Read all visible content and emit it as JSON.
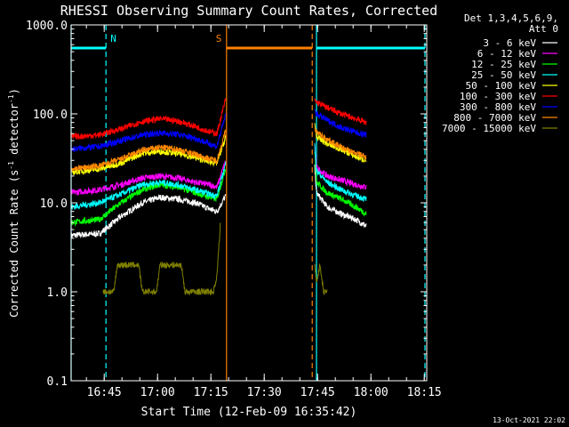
{
  "chart_data": {
    "type": "line",
    "title": "RHESSI Observing Summary Count Rates, Corrected",
    "xlabel": "Start Time (12-Feb-09 16:35:42)",
    "ylabel": "Corrected Count Rate (s",
    "ylabel_sup1": "-1",
    "ylabel_mid": " detector",
    "ylabel_sup2": "-1",
    "ylabel_end": ")",
    "y_scale": "log",
    "ylim": [
      0.1,
      1000
    ],
    "xlim_minutes": [
      0,
      100
    ],
    "y_ticks": [
      "0.1",
      "1.0",
      "10.0",
      "100.0",
      "1000.0"
    ],
    "x_ticks": [
      {
        "t": 9.3,
        "label": "16:45"
      },
      {
        "t": 24.3,
        "label": "17:00"
      },
      {
        "t": 39.3,
        "label": "17:15"
      },
      {
        "t": 54.3,
        "label": "17:30"
      },
      {
        "t": 69.3,
        "label": "17:45"
      },
      {
        "t": 84.3,
        "label": "18:00"
      },
      {
        "t": 99.3,
        "label": "18:15"
      }
    ],
    "legend_header": [
      "Det 1,3,4,5,6,9,",
      "Att 0"
    ],
    "legend_placement": "right",
    "series": [
      {
        "name": "3 - 6 keV",
        "color": "#ffffff",
        "seg1": [
          [
            0,
            4.3
          ],
          [
            8,
            4.5
          ],
          [
            14,
            7
          ],
          [
            20,
            10
          ],
          [
            25,
            11.5
          ],
          [
            30,
            11
          ],
          [
            35,
            10
          ],
          [
            39,
            8.5
          ],
          [
            41,
            8
          ],
          [
            43.5,
            12
          ]
        ],
        "seg2": [
          [
            68.5,
            25
          ],
          [
            69,
            13
          ],
          [
            72,
            9
          ],
          [
            76,
            7.5
          ],
          [
            80,
            6.5
          ],
          [
            83,
            5.5
          ]
        ]
      },
      {
        "name": "6 - 12 keV",
        "color": "#ff00ff",
        "seg1": [
          [
            0,
            13
          ],
          [
            8,
            14
          ],
          [
            14,
            16
          ],
          [
            20,
            19
          ],
          [
            25,
            20
          ],
          [
            30,
            19
          ],
          [
            35,
            17
          ],
          [
            39,
            16
          ],
          [
            41,
            15
          ],
          [
            43.5,
            30
          ]
        ],
        "seg2": [
          [
            68.5,
            45
          ],
          [
            69,
            25
          ],
          [
            72,
            20
          ],
          [
            76,
            18
          ],
          [
            80,
            16
          ],
          [
            83,
            15
          ]
        ]
      },
      {
        "name": "12 - 25 keV",
        "color": "#00ff00",
        "seg1": [
          [
            0,
            6
          ],
          [
            8,
            6.5
          ],
          [
            14,
            10
          ],
          [
            20,
            14
          ],
          [
            25,
            16
          ],
          [
            30,
            15
          ],
          [
            35,
            13
          ],
          [
            39,
            11.5
          ],
          [
            41,
            11
          ],
          [
            43.5,
            25
          ]
        ],
        "seg2": [
          [
            68.5,
            40
          ],
          [
            69,
            17
          ],
          [
            72,
            13
          ],
          [
            76,
            11
          ],
          [
            80,
            9
          ],
          [
            83,
            7.5
          ]
        ]
      },
      {
        "name": "25 - 50 keV",
        "color": "#00ffff",
        "seg1": [
          [
            0,
            9
          ],
          [
            8,
            10
          ],
          [
            14,
            12.5
          ],
          [
            20,
            16
          ],
          [
            25,
            17
          ],
          [
            30,
            16
          ],
          [
            35,
            14
          ],
          [
            39,
            12.5
          ],
          [
            41,
            12
          ],
          [
            43.5,
            28
          ]
        ],
        "seg2": [
          [
            68.5,
            45
          ],
          [
            69,
            23
          ],
          [
            72,
            17
          ],
          [
            76,
            14
          ],
          [
            80,
            12
          ],
          [
            83,
            11
          ]
        ]
      },
      {
        "name": "50 - 100 keV",
        "color": "#ffff00",
        "seg1": [
          [
            0,
            22
          ],
          [
            8,
            24
          ],
          [
            14,
            28
          ],
          [
            20,
            36
          ],
          [
            25,
            38
          ],
          [
            30,
            36
          ],
          [
            35,
            32
          ],
          [
            39,
            29
          ],
          [
            41,
            28
          ],
          [
            43.5,
            55
          ]
        ],
        "seg2": [
          [
            68.5,
            75
          ],
          [
            69,
            55
          ],
          [
            72,
            46
          ],
          [
            76,
            40
          ],
          [
            80,
            33
          ],
          [
            83,
            30
          ]
        ]
      },
      {
        "name": "100 - 300 keV",
        "color": "#ff0000",
        "seg1": [
          [
            0,
            55
          ],
          [
            8,
            58
          ],
          [
            14,
            68
          ],
          [
            20,
            82
          ],
          [
            25,
            88
          ],
          [
            30,
            83
          ],
          [
            35,
            72
          ],
          [
            39,
            63
          ],
          [
            41,
            60
          ],
          [
            43.5,
            150
          ]
        ],
        "seg2": [
          [
            68.5,
            140
          ],
          [
            69,
            135
          ],
          [
            72,
            118
          ],
          [
            76,
            100
          ],
          [
            80,
            88
          ],
          [
            83,
            80
          ]
        ]
      },
      {
        "name": "300 - 800 keV",
        "color": "#0000ff",
        "seg1": [
          [
            0,
            40
          ],
          [
            8,
            43
          ],
          [
            14,
            50
          ],
          [
            20,
            58
          ],
          [
            25,
            61
          ],
          [
            30,
            59
          ],
          [
            35,
            53
          ],
          [
            39,
            46
          ],
          [
            41,
            43
          ],
          [
            43.5,
            100
          ]
        ],
        "seg2": [
          [
            68.5,
            110
          ],
          [
            69,
            100
          ],
          [
            72,
            85
          ],
          [
            76,
            70
          ],
          [
            80,
            62
          ],
          [
            83,
            58
          ]
        ]
      },
      {
        "name": "800 - 7000 keV",
        "color": "#ff8800",
        "seg1": [
          [
            0,
            24
          ],
          [
            8,
            26
          ],
          [
            14,
            31
          ],
          [
            20,
            39
          ],
          [
            25,
            42
          ],
          [
            30,
            40
          ],
          [
            35,
            35
          ],
          [
            39,
            31
          ],
          [
            41,
            30
          ],
          [
            43.5,
            65
          ]
        ],
        "seg2": [
          [
            68.5,
            70
          ],
          [
            69,
            62
          ],
          [
            72,
            52
          ],
          [
            76,
            42
          ],
          [
            80,
            36
          ],
          [
            83,
            33
          ]
        ]
      },
      {
        "name": "7000 - 15000 keV",
        "color": "#808000",
        "seg1": [
          [
            9,
            1.0
          ],
          [
            12,
            1.0
          ],
          [
            13,
            2.0
          ],
          [
            19,
            2.0
          ],
          [
            20,
            1.0
          ],
          [
            24,
            1.0
          ],
          [
            25,
            2.0
          ],
          [
            31,
            2.0
          ],
          [
            32,
            1.0
          ],
          [
            39,
            1.0
          ],
          [
            40,
            1.0
          ],
          [
            41,
            1.5
          ],
          [
            41.5,
            3
          ],
          [
            42,
            6
          ]
        ],
        "seg2": [
          [
            68.5,
            2
          ],
          [
            69,
            1.3
          ],
          [
            70,
            2
          ],
          [
            71,
            1.0
          ],
          [
            72,
            1.0
          ]
        ]
      }
    ],
    "flag_bars": [
      {
        "label": "N",
        "color": "#00ffff",
        "t_start": 0,
        "t_end": 9.8
      },
      {
        "label": "S",
        "color": "#ff8000",
        "t_start": 43.7,
        "t_end": 67.8
      },
      {
        "label": "",
        "color": "#00ffff",
        "t_start": 69.0,
        "t_end": 99.5
      }
    ],
    "vlines": [
      {
        "t": 0,
        "color": "#00ffff",
        "style": "solid"
      },
      {
        "t": 9.8,
        "color": "#00ffff",
        "style": "dashed"
      },
      {
        "t": 43.7,
        "color": "#ff8000",
        "style": "solid"
      },
      {
        "t": 67.8,
        "color": "#ff8000",
        "style": "dashed"
      },
      {
        "t": 69.0,
        "color": "#00ffff",
        "style": "solid"
      },
      {
        "t": 99.5,
        "color": "#00ffff",
        "style": "dashed"
      }
    ],
    "footer": "13-Oct-2021 22:02"
  }
}
